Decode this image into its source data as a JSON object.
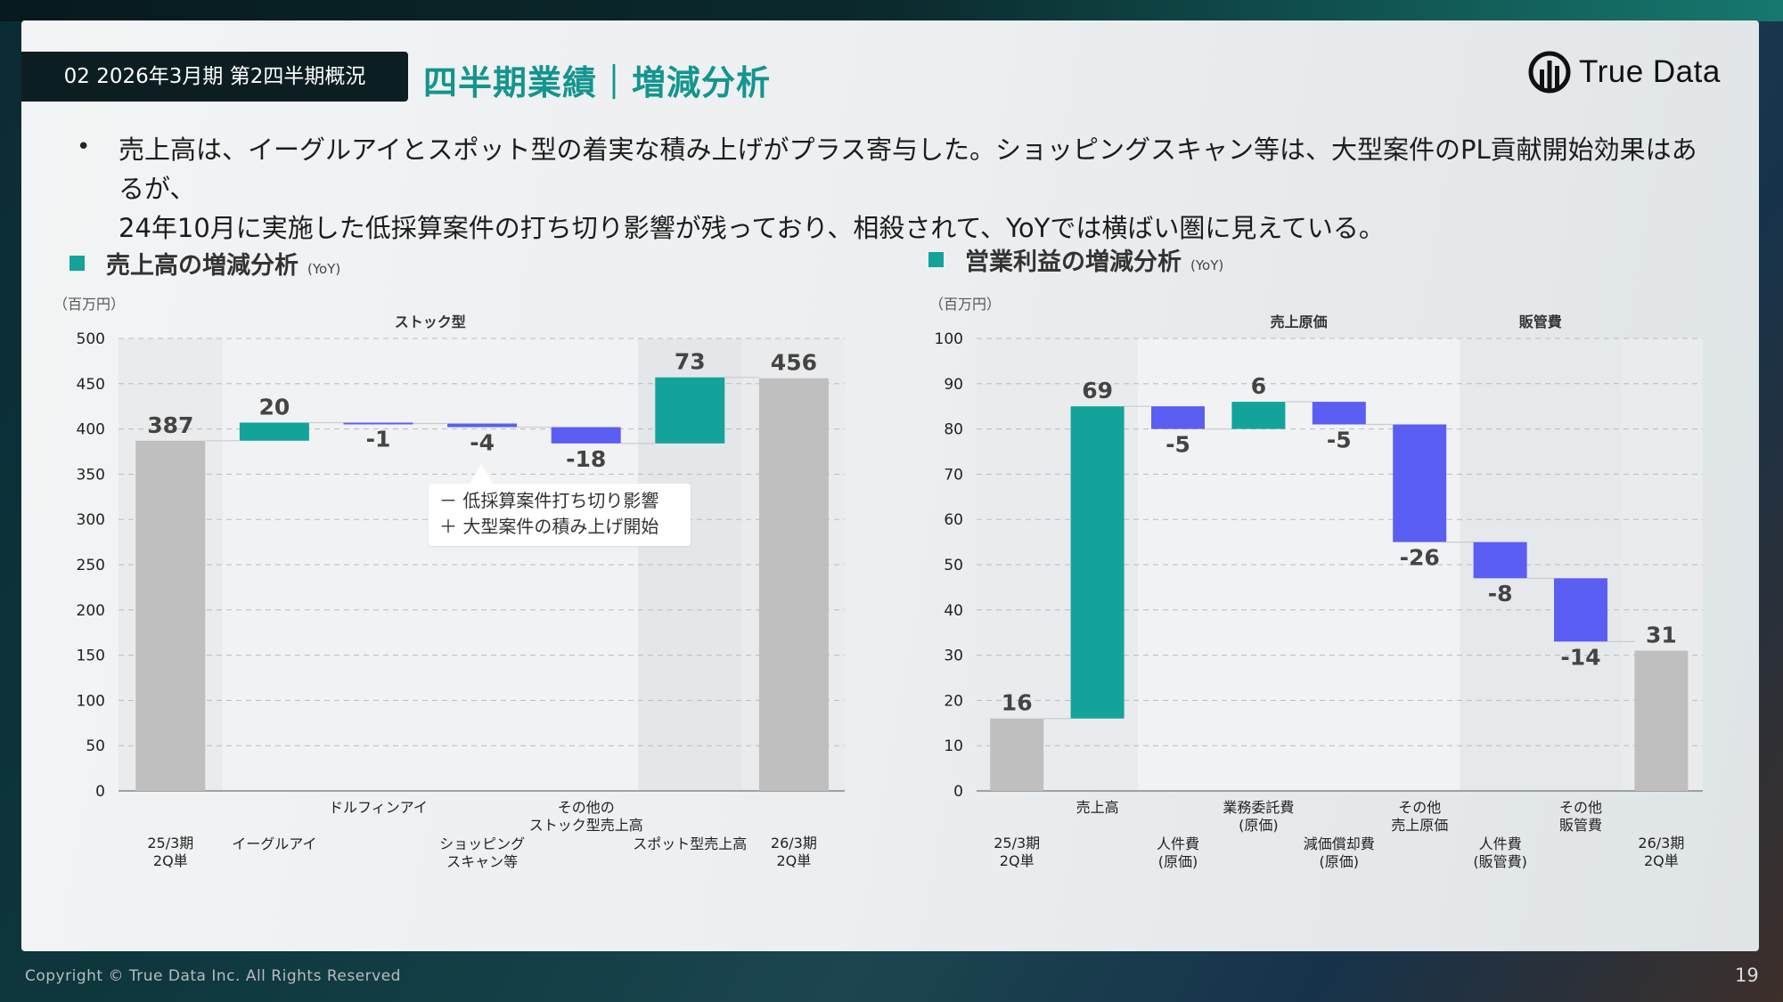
{
  "header": {
    "section_tag": "02 2026年3月期 第2四半期概況",
    "title": "四半期業績｜増減分析",
    "logo_text": "True Data"
  },
  "bullet": {
    "line1": "売上高は、イーグルアイとスポット型の着実な積み上げがプラス寄与した。ショッピングスキャン等は、大型案件のPL貢献開始効果はあるが、",
    "line2": "24年10月に実施した低採算案件の打ち切り影響が残っており、相殺されて、YoYでは横ばい圏に見えている。"
  },
  "callout": {
    "line1": "－ 低採算案件打ち切り影響",
    "line2": "＋ 大型案件の積み上げ開始"
  },
  "footer": {
    "copyright": "Copyright © True Data Inc. All Rights Reserved",
    "page": "19"
  },
  "colors": {
    "increase": "#13a39b",
    "decrease": "#5b5ef2",
    "total": "#bfbfbf"
  },
  "chart_data": [
    {
      "type": "waterfall",
      "title": "売上高の増減分析",
      "subtitle": "(YoY)",
      "unit": "（百万円）",
      "ylim": [
        0,
        500
      ],
      "yticks": [
        0,
        50,
        100,
        150,
        200,
        250,
        300,
        350,
        400,
        450,
        500
      ],
      "group_labels": [
        {
          "label": "ストック型",
          "from": 1,
          "to": 4
        }
      ],
      "steps": [
        {
          "label": "25/3期\n2Q単",
          "value": 387,
          "kind": "total",
          "display": "387"
        },
        {
          "label": "イーグルアイ",
          "value": 20,
          "kind": "delta",
          "display": "20"
        },
        {
          "label": "ドルフィンアイ",
          "value": -1,
          "kind": "delta",
          "display": "-1"
        },
        {
          "label": "ショッピング\nスキャン等",
          "value": -4,
          "kind": "delta",
          "display": "-4"
        },
        {
          "label": "その他の\nストック型売上高",
          "value": -18,
          "kind": "delta",
          "display": "-18"
        },
        {
          "label": "スポット型売上高",
          "value": 73,
          "kind": "delta",
          "display": "73"
        },
        {
          "label": "26/3期\n2Q単",
          "value": 456,
          "kind": "total",
          "display": "456"
        }
      ]
    },
    {
      "type": "waterfall",
      "title": "営業利益の増減分析",
      "subtitle": "(YoY)",
      "unit": "（百万円）",
      "ylim": [
        0,
        100
      ],
      "yticks": [
        0,
        10,
        20,
        30,
        40,
        50,
        60,
        70,
        80,
        90,
        100
      ],
      "group_labels": [
        {
          "label": "売上原価",
          "from": 2,
          "to": 5
        },
        {
          "label": "販管費",
          "from": 6,
          "to": 7
        }
      ],
      "steps": [
        {
          "label": "25/3期\n2Q単",
          "value": 16,
          "kind": "total",
          "display": "16"
        },
        {
          "label": "売上高",
          "value": 69,
          "kind": "delta",
          "display": "69"
        },
        {
          "label": "人件費\n(原価)",
          "value": -5,
          "kind": "delta",
          "display": "-5"
        },
        {
          "label": "業務委託費\n(原価)",
          "value": 6,
          "kind": "delta",
          "display": "6"
        },
        {
          "label": "減価償却費\n(原価)",
          "value": -5,
          "kind": "delta",
          "display": "-5"
        },
        {
          "label": "その他\n売上原価",
          "value": -26,
          "kind": "delta",
          "display": "-26"
        },
        {
          "label": "人件費\n(販管費)",
          "value": -8,
          "kind": "delta",
          "display": "-8"
        },
        {
          "label": "その他\n販管費",
          "value": -14,
          "kind": "delta",
          "display": "-14"
        },
        {
          "label": "26/3期\n2Q単",
          "value": 31,
          "kind": "total",
          "display": "31"
        }
      ]
    }
  ]
}
